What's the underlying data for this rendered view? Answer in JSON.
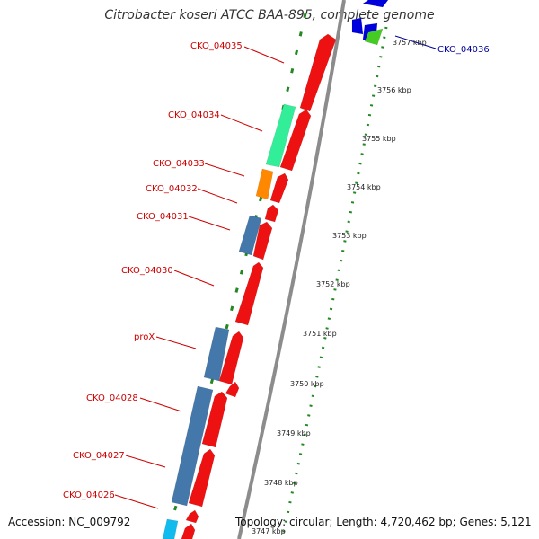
{
  "title": "Citrobacter koseri ATCC BAA-895, complete genome",
  "footer": {
    "accession": "Accession: NC_009792",
    "summary": "Topology: circular; Length: 4,720,462 bp; Genes: 5,121"
  },
  "colors": {
    "reverse_cds": "#ee1111",
    "forward_cds_blue": "#4477aa",
    "cog_green": "#33ee99",
    "cog_orange": "#ff8800",
    "cog_cyan": "#11bbee",
    "top_blue": "#0000dd",
    "top_lime": "#44cc22",
    "backbone": "#8c8c8c",
    "tick_green": "#228822",
    "label_red": "#cc0000",
    "label_blue": "#000099"
  },
  "gene_labels": [
    {
      "text": "CKO_04035",
      "color": "red"
    },
    {
      "text": "CKO_04034",
      "color": "red"
    },
    {
      "text": "CKO_04033",
      "color": "red"
    },
    {
      "text": "CKO_04032",
      "color": "red"
    },
    {
      "text": "CKO_04031",
      "color": "red"
    },
    {
      "text": "CKO_04030",
      "color": "red"
    },
    {
      "text": "proX",
      "color": "red"
    },
    {
      "text": "CKO_04028",
      "color": "red"
    },
    {
      "text": "CKO_04027",
      "color": "red"
    },
    {
      "text": "CKO_04026",
      "color": "red"
    },
    {
      "text": "CKO_04036",
      "color": "blue"
    }
  ],
  "position_ticks": [
    "3757 kbp",
    "3756 kbp",
    "3755 kbp",
    "3754 kbp",
    "3753 kbp",
    "3752 kbp",
    "3751 kbp",
    "3750 kbp",
    "3749 kbp",
    "3748 kbp",
    "3747 kbp"
  ]
}
